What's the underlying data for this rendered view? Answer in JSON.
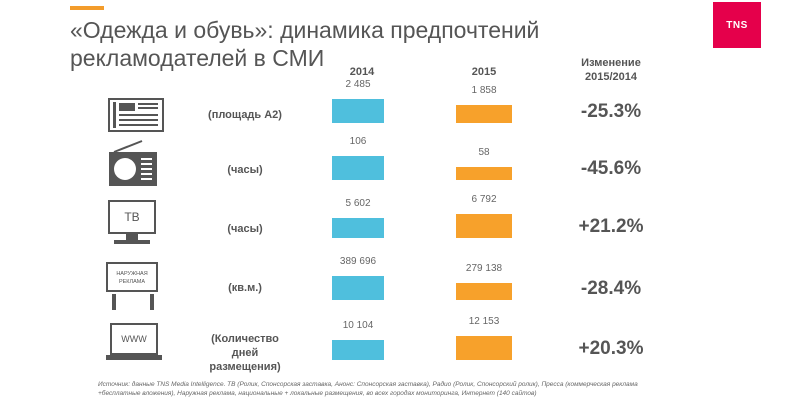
{
  "header": {
    "title_line1": "«Одежда и обувь»: динамика предпочтений",
    "title_line2": "рекламодателей в СМИ",
    "logo": "TNS",
    "accent_color": "#f39c2b",
    "logo_color": "#e5004b"
  },
  "columns": {
    "y2014": "2014",
    "y2015": "2015",
    "change_line1": "Изменение",
    "change_line2": "2015/2014"
  },
  "chart_data": {
    "type": "bar",
    "series_colors": {
      "2014": "#4fbfdd",
      "2015": "#f7a12b"
    },
    "rows": [
      {
        "icon": "press-icon",
        "unit": "(площадь А2)",
        "v2014": 2485,
        "v2015": 1858,
        "label2014": "2 485",
        "label2015": "1 858",
        "change": "-25.3%"
      },
      {
        "icon": "radio-icon",
        "unit": "(часы)",
        "v2014": 106,
        "v2015": 58,
        "label2014": "106",
        "label2015": "58",
        "change": "-45.6%"
      },
      {
        "icon": "tv-icon",
        "icon_text": "ТВ",
        "unit": "(часы)",
        "v2014": 5602,
        "v2015": 6792,
        "label2014": "5 602",
        "label2015": "6 792",
        "change": "+21.2%"
      },
      {
        "icon": "billboard-icon",
        "icon_text1": "НАРУЖНАЯ",
        "icon_text2": "РЕКЛАМА",
        "unit": "(кв.м.)",
        "v2014": 389696,
        "v2015": 279138,
        "label2014": "389 696",
        "label2015": "279 138",
        "change": "-28.4%"
      },
      {
        "icon": "internet-icon",
        "icon_text": "WWW",
        "unit1": "(Количество",
        "unit2": "дней",
        "unit3": "размещения)",
        "v2014": 10104,
        "v2015": 12153,
        "label2014": "10 104",
        "label2015": "12 153",
        "change": "+20.3%"
      }
    ]
  },
  "footer": {
    "source_line1": "Источник: данные TNS Media Intelligence. ТВ (Ролик, Спонсорская заставка, Анонс: Спонсорская заставка), Радио (Ролик, Спонсорский ролик), Пресса (коммерческая реклама",
    "source_line2": "+бесплатные вложения), Наружная реклама, национальные + локальные размещения, во всех городах мониторинга, Интернет (140 сайтов)"
  }
}
